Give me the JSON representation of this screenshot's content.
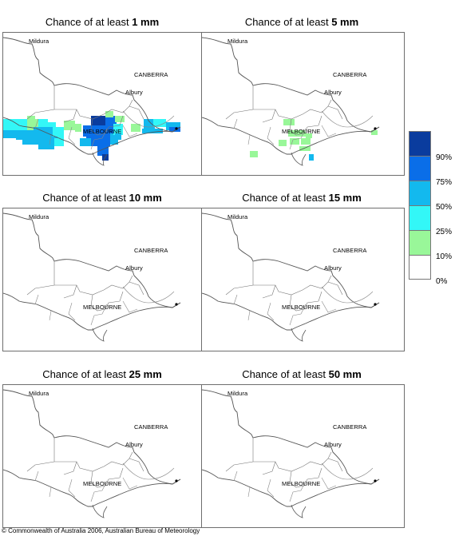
{
  "panels": [
    {
      "prefix": "Chance of at least ",
      "amount": "1 mm"
    },
    {
      "prefix": "Chance of at least ",
      "amount": "5 mm"
    },
    {
      "prefix": "Chance of at least ",
      "amount": "10 mm"
    },
    {
      "prefix": "Chance of at least ",
      "amount": "15 mm"
    },
    {
      "prefix": "Chance of at least ",
      "amount": "25 mm"
    },
    {
      "prefix": "Chance of at least ",
      "amount": "50 mm"
    }
  ],
  "places": {
    "mildura": "Mildura",
    "canberra": "CANBERRA",
    "albury": "Albury",
    "melbourne": "MELBOURNE"
  },
  "legend": {
    "labels": [
      "90%",
      "75%",
      "50%",
      "25%",
      "10%",
      "0%"
    ],
    "colors": [
      "#0a3c9e",
      "#0a6ee8",
      "#13b9ee",
      "#33f7f7",
      "#99f799",
      "#ffffff"
    ]
  },
  "copyright": "© Commonwealth of Australia 2006, Australian Bureau of Meteorology"
}
